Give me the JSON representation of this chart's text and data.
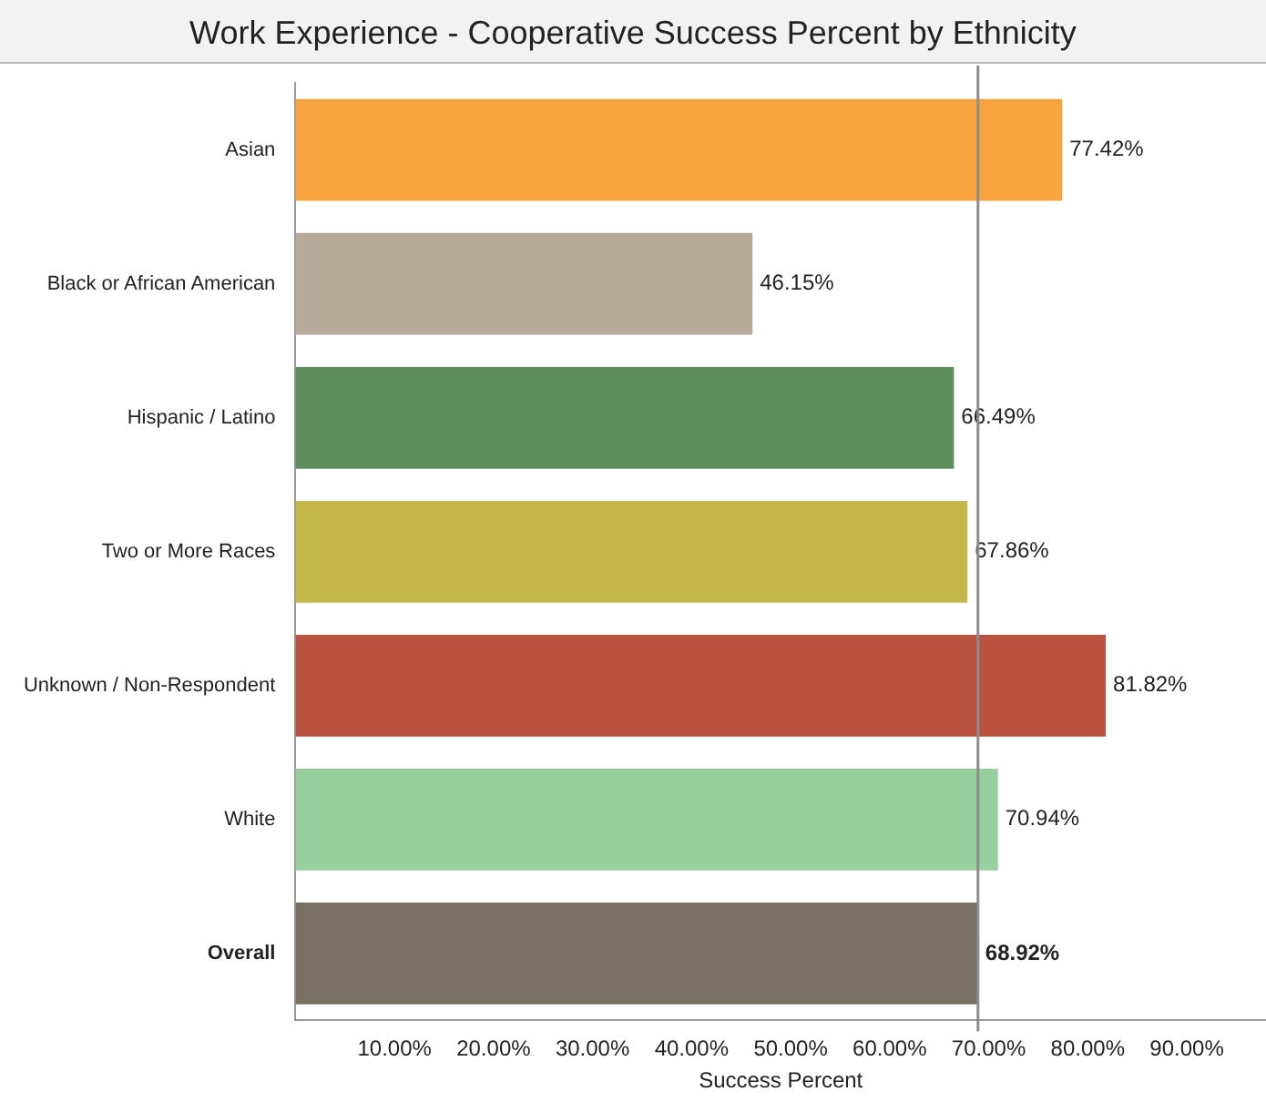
{
  "chart_data": {
    "type": "bar",
    "orientation": "horizontal",
    "title": "Work Experience - Cooperative Success Percent by Ethnicity",
    "xlabel": "Success Percent",
    "categories": [
      "Asian",
      "Black or African American",
      "Hispanic / Latino",
      "Two or More Races",
      "Unknown / Non-Respondent",
      "White",
      "Overall"
    ],
    "values": [
      77.42,
      46.15,
      66.49,
      67.86,
      81.82,
      70.94,
      68.92
    ],
    "colors": [
      "#f7a43e",
      "#b7aa98",
      "#5e8f5e",
      "#c4b84c",
      "#b9533f",
      "#98cf9f",
      "#7a7165"
    ],
    "value_labels": [
      "77.42%",
      "46.15%",
      "66.49%",
      "67.86%",
      "81.82%",
      "70.94%",
      "68.92%"
    ],
    "xlim": [
      0,
      98
    ],
    "xticks": [
      {
        "value": 0,
        "label": null
      },
      {
        "value": 10,
        "label": "10.00%"
      },
      {
        "value": 20,
        "label": "20.00%"
      },
      {
        "value": 30,
        "label": "30.00%"
      },
      {
        "value": 40,
        "label": "40.00%"
      },
      {
        "value": 50,
        "label": "50.00%"
      },
      {
        "value": 60,
        "label": "60.00%"
      },
      {
        "value": 70,
        "label": "70.00%"
      },
      {
        "value": 80,
        "label": "80.00%"
      },
      {
        "value": 90,
        "label": "90.00%"
      }
    ],
    "ref_lines": [
      {
        "axis": "x",
        "value": 68.92,
        "color": "#8c8c8c"
      }
    ],
    "grid": false,
    "legend": false
  }
}
